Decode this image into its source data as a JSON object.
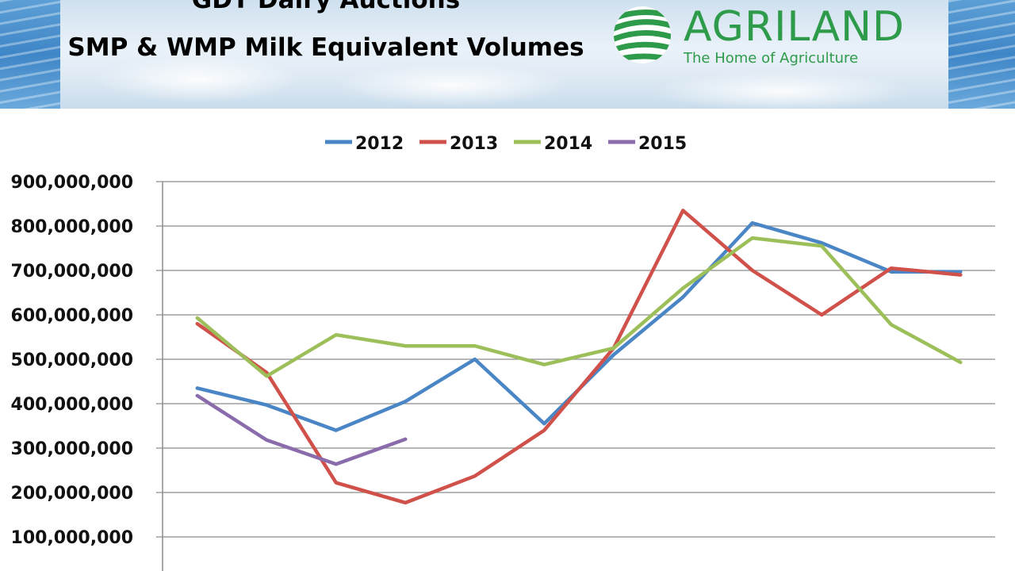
{
  "header": {
    "title_line_1": "GDT Dairy Auctions",
    "title_line_2": "SMP & WMP Milk Equivalent Volumes"
  },
  "logo": {
    "name": "AGRILAND",
    "tagline": "The Home of Agriculture",
    "color": "#2e9b4a"
  },
  "chart_data": {
    "type": "line",
    "title": "",
    "xlabel": "",
    "ylabel": "",
    "ylim": [
      0,
      900000000
    ],
    "yticks": [
      100000000,
      200000000,
      300000000,
      400000000,
      500000000,
      600000000,
      700000000,
      800000000,
      900000000
    ],
    "ytick_labels": [
      "100,000,000",
      "200,000,000",
      "300,000,000",
      "400,000,000",
      "500,000,000",
      "600,000,000",
      "700,000,000",
      "800,000,000",
      "900,000,000"
    ],
    "grid": true,
    "legend_position": "top-center",
    "x_count": 12,
    "series": [
      {
        "name": "2012",
        "color": "#4a86c5",
        "values": [
          435000000,
          397000000,
          340000000,
          405000000,
          500000000,
          355000000,
          510000000,
          640000000,
          807000000,
          762000000,
          697000000,
          697000000
        ]
      },
      {
        "name": "2013",
        "color": "#d0504a",
        "values": [
          580000000,
          470000000,
          222000000,
          177000000,
          237000000,
          340000000,
          525000000,
          835000000,
          700000000,
          600000000,
          705000000,
          690000000
        ]
      },
      {
        "name": "2014",
        "color": "#9dbf5a",
        "values": [
          593000000,
          462000000,
          555000000,
          530000000,
          530000000,
          488000000,
          525000000,
          660000000,
          773000000,
          755000000,
          578000000,
          493000000
        ]
      },
      {
        "name": "2015",
        "color": "#8a6bab",
        "values": [
          418000000,
          318000000,
          264000000,
          320000000
        ]
      }
    ]
  }
}
